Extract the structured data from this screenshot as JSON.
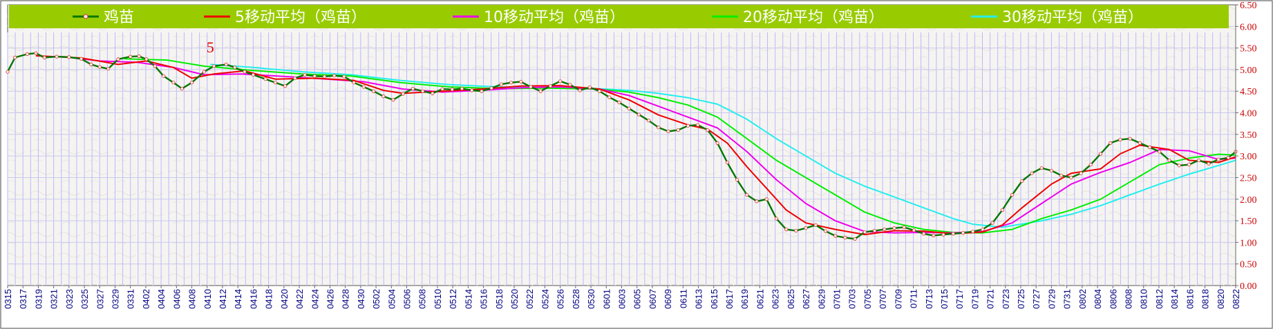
{
  "chart_data": {
    "type": "line",
    "title": "",
    "xlabel": "",
    "ylabel": "",
    "ylim": [
      0,
      6.5
    ],
    "yticks": [
      "0.00",
      "0.50",
      "1.00",
      "1.50",
      "2.00",
      "2.50",
      "3.00",
      "3.50",
      "4.00",
      "4.50",
      "5.00",
      "5.50",
      "6.00",
      "6.50"
    ],
    "x_tick_labels": [
      "0315",
      "0317",
      "0319",
      "0321",
      "0323",
      "0325",
      "0327",
      "0329",
      "0331",
      "0402",
      "0404",
      "0406",
      "0408",
      "0410",
      "0412",
      "0414",
      "0416",
      "0418",
      "0420",
      "0422",
      "0424",
      "0426",
      "0428",
      "0430",
      "0502",
      "0504",
      "0506",
      "0508",
      "0510",
      "0512",
      "0514",
      "0516",
      "0518",
      "0520",
      "0522",
      "0524",
      "0526",
      "0528",
      "0530",
      "0601",
      "0603",
      "0605",
      "0607",
      "0609",
      "0611",
      "0613",
      "0615",
      "0617",
      "0619",
      "0621",
      "0623",
      "0625",
      "0627",
      "0629",
      "0701",
      "0703",
      "0705",
      "0707",
      "0709",
      "0711",
      "0713",
      "0715",
      "0717",
      "0719",
      "0721",
      "0723",
      "0725",
      "0727",
      "0729",
      "0731",
      "0802",
      "0804",
      "0806",
      "0808",
      "0810",
      "0812",
      "0814",
      "0816",
      "0818",
      "0820",
      "0822"
    ],
    "annotation": {
      "text": "5",
      "at_x": 0.165,
      "y": 5.4
    },
    "legend": {
      "placement": "top",
      "background": "#99cc00",
      "text_color": "#ffffff"
    },
    "colors": {
      "plot_bg": "#f6f4f0",
      "grid_vertical": "#b8b8ff",
      "grid_horizontal": "#c8c8ee",
      "axis_text": "#cc0000",
      "xaxis_text": "#000080"
    },
    "series": [
      {
        "name": "鸡苗",
        "color": "#007700",
        "marker": true,
        "width": 2.4,
        "points": [
          [
            0,
            4.95
          ],
          [
            0.006,
            5.28
          ],
          [
            0.016,
            5.36
          ],
          [
            0.023,
            5.38
          ],
          [
            0.03,
            5.28
          ],
          [
            0.04,
            5.3
          ],
          [
            0.05,
            5.29
          ],
          [
            0.06,
            5.25
          ],
          [
            0.068,
            5.12
          ],
          [
            0.075,
            5.06
          ],
          [
            0.082,
            5.02
          ],
          [
            0.09,
            5.24
          ],
          [
            0.1,
            5.3
          ],
          [
            0.107,
            5.31
          ],
          [
            0.113,
            5.24
          ],
          [
            0.12,
            5.08
          ],
          [
            0.127,
            4.85
          ],
          [
            0.135,
            4.7
          ],
          [
            0.142,
            4.56
          ],
          [
            0.15,
            4.7
          ],
          [
            0.16,
            4.95
          ],
          [
            0.168,
            5.08
          ],
          [
            0.178,
            5.12
          ],
          [
            0.185,
            5.05
          ],
          [
            0.193,
            4.95
          ],
          [
            0.2,
            4.88
          ],
          [
            0.21,
            4.78
          ],
          [
            0.218,
            4.7
          ],
          [
            0.226,
            4.62
          ],
          [
            0.234,
            4.8
          ],
          [
            0.242,
            4.88
          ],
          [
            0.25,
            4.85
          ],
          [
            0.258,
            4.84
          ],
          [
            0.266,
            4.86
          ],
          [
            0.274,
            4.84
          ],
          [
            0.282,
            4.7
          ],
          [
            0.29,
            4.6
          ],
          [
            0.298,
            4.5
          ],
          [
            0.306,
            4.38
          ],
          [
            0.314,
            4.3
          ],
          [
            0.322,
            4.44
          ],
          [
            0.33,
            4.56
          ],
          [
            0.338,
            4.5
          ],
          [
            0.346,
            4.45
          ],
          [
            0.354,
            4.55
          ],
          [
            0.362,
            4.54
          ],
          [
            0.37,
            4.56
          ],
          [
            0.378,
            4.52
          ],
          [
            0.386,
            4.5
          ],
          [
            0.394,
            4.57
          ],
          [
            0.402,
            4.66
          ],
          [
            0.41,
            4.7
          ],
          [
            0.418,
            4.72
          ],
          [
            0.426,
            4.6
          ],
          [
            0.434,
            4.5
          ],
          [
            0.442,
            4.62
          ],
          [
            0.45,
            4.73
          ],
          [
            0.458,
            4.65
          ],
          [
            0.466,
            4.52
          ],
          [
            0.474,
            4.59
          ],
          [
            0.482,
            4.5
          ],
          [
            0.49,
            4.36
          ],
          [
            0.498,
            4.24
          ],
          [
            0.506,
            4.1
          ],
          [
            0.514,
            3.96
          ],
          [
            0.522,
            3.82
          ],
          [
            0.53,
            3.66
          ],
          [
            0.538,
            3.57
          ],
          [
            0.546,
            3.6
          ],
          [
            0.554,
            3.7
          ],
          [
            0.562,
            3.72
          ],
          [
            0.57,
            3.6
          ],
          [
            0.578,
            3.3
          ],
          [
            0.586,
            2.85
          ],
          [
            0.594,
            2.45
          ],
          [
            0.602,
            2.1
          ],
          [
            0.61,
            1.95
          ],
          [
            0.618,
            2.0
          ],
          [
            0.626,
            1.55
          ],
          [
            0.634,
            1.3
          ],
          [
            0.642,
            1.27
          ],
          [
            0.65,
            1.33
          ],
          [
            0.658,
            1.4
          ],
          [
            0.666,
            1.26
          ],
          [
            0.674,
            1.15
          ],
          [
            0.682,
            1.11
          ],
          [
            0.69,
            1.08
          ],
          [
            0.698,
            1.24
          ],
          [
            0.706,
            1.27
          ],
          [
            0.714,
            1.3
          ],
          [
            0.722,
            1.33
          ],
          [
            0.73,
            1.35
          ],
          [
            0.738,
            1.28
          ],
          [
            0.746,
            1.2
          ],
          [
            0.754,
            1.16
          ],
          [
            0.762,
            1.18
          ],
          [
            0.77,
            1.2
          ],
          [
            0.778,
            1.22
          ],
          [
            0.786,
            1.25
          ],
          [
            0.794,
            1.3
          ],
          [
            0.802,
            1.45
          ],
          [
            0.81,
            1.75
          ],
          [
            0.818,
            2.1
          ],
          [
            0.826,
            2.42
          ],
          [
            0.834,
            2.6
          ],
          [
            0.842,
            2.72
          ],
          [
            0.85,
            2.66
          ],
          [
            0.858,
            2.55
          ],
          [
            0.866,
            2.5
          ],
          [
            0.874,
            2.6
          ],
          [
            0.882,
            2.8
          ],
          [
            0.89,
            3.05
          ],
          [
            0.898,
            3.3
          ],
          [
            0.906,
            3.38
          ],
          [
            0.914,
            3.4
          ],
          [
            0.922,
            3.3
          ],
          [
            0.93,
            3.2
          ],
          [
            0.938,
            3.1
          ],
          [
            0.946,
            2.9
          ],
          [
            0.954,
            2.78
          ],
          [
            0.962,
            2.8
          ],
          [
            0.97,
            2.9
          ],
          [
            0.978,
            2.82
          ],
          [
            0.986,
            2.92
          ],
          [
            0.994,
            2.96
          ],
          [
            1.0,
            3.1
          ]
        ]
      },
      {
        "name": "5移动平均（鸡苗）",
        "color": "#ee0000",
        "marker": false,
        "width": 2,
        "points": [
          [
            0.023,
            5.32
          ],
          [
            0.06,
            5.27
          ],
          [
            0.09,
            5.12
          ],
          [
            0.113,
            5.2
          ],
          [
            0.135,
            5.05
          ],
          [
            0.15,
            4.8
          ],
          [
            0.168,
            4.9
          ],
          [
            0.193,
            4.97
          ],
          [
            0.218,
            4.78
          ],
          [
            0.25,
            4.8
          ],
          [
            0.282,
            4.75
          ],
          [
            0.306,
            4.52
          ],
          [
            0.322,
            4.45
          ],
          [
            0.354,
            4.5
          ],
          [
            0.386,
            4.55
          ],
          [
            0.418,
            4.62
          ],
          [
            0.45,
            4.63
          ],
          [
            0.482,
            4.55
          ],
          [
            0.506,
            4.3
          ],
          [
            0.53,
            3.95
          ],
          [
            0.554,
            3.72
          ],
          [
            0.57,
            3.62
          ],
          [
            0.586,
            3.3
          ],
          [
            0.602,
            2.75
          ],
          [
            0.618,
            2.25
          ],
          [
            0.634,
            1.75
          ],
          [
            0.65,
            1.45
          ],
          [
            0.674,
            1.3
          ],
          [
            0.698,
            1.18
          ],
          [
            0.722,
            1.27
          ],
          [
            0.746,
            1.26
          ],
          [
            0.77,
            1.2
          ],
          [
            0.794,
            1.24
          ],
          [
            0.81,
            1.4
          ],
          [
            0.826,
            1.8
          ],
          [
            0.85,
            2.35
          ],
          [
            0.866,
            2.6
          ],
          [
            0.89,
            2.7
          ],
          [
            0.906,
            3.05
          ],
          [
            0.922,
            3.25
          ],
          [
            0.946,
            3.15
          ],
          [
            0.962,
            2.9
          ],
          [
            0.986,
            2.85
          ],
          [
            1.0,
            2.98
          ]
        ]
      },
      {
        "name": "10移动平均（鸡苗）",
        "color": "#ee00ee",
        "marker": false,
        "width": 2,
        "points": [
          [
            0.045,
            5.3
          ],
          [
            0.075,
            5.2
          ],
          [
            0.105,
            5.17
          ],
          [
            0.135,
            5.05
          ],
          [
            0.16,
            4.88
          ],
          [
            0.19,
            4.9
          ],
          [
            0.22,
            4.85
          ],
          [
            0.26,
            4.78
          ],
          [
            0.29,
            4.72
          ],
          [
            0.322,
            4.55
          ],
          [
            0.354,
            4.48
          ],
          [
            0.386,
            4.52
          ],
          [
            0.418,
            4.58
          ],
          [
            0.45,
            4.6
          ],
          [
            0.482,
            4.55
          ],
          [
            0.506,
            4.4
          ],
          [
            0.53,
            4.15
          ],
          [
            0.554,
            3.9
          ],
          [
            0.578,
            3.65
          ],
          [
            0.602,
            3.1
          ],
          [
            0.626,
            2.45
          ],
          [
            0.65,
            1.9
          ],
          [
            0.674,
            1.5
          ],
          [
            0.698,
            1.25
          ],
          [
            0.722,
            1.22
          ],
          [
            0.746,
            1.23
          ],
          [
            0.77,
            1.22
          ],
          [
            0.794,
            1.25
          ],
          [
            0.818,
            1.45
          ],
          [
            0.842,
            1.9
          ],
          [
            0.866,
            2.35
          ],
          [
            0.89,
            2.62
          ],
          [
            0.914,
            2.85
          ],
          [
            0.938,
            3.15
          ],
          [
            0.962,
            3.12
          ],
          [
            0.986,
            2.92
          ],
          [
            1.0,
            2.95
          ]
        ]
      },
      {
        "name": "20移动平均（鸡苗）",
        "color": "#00ee00",
        "marker": false,
        "width": 2,
        "points": [
          [
            0.095,
            5.25
          ],
          [
            0.13,
            5.22
          ],
          [
            0.16,
            5.08
          ],
          [
            0.2,
            4.98
          ],
          [
            0.24,
            4.9
          ],
          [
            0.28,
            4.85
          ],
          [
            0.32,
            4.7
          ],
          [
            0.36,
            4.6
          ],
          [
            0.4,
            4.56
          ],
          [
            0.44,
            4.57
          ],
          [
            0.48,
            4.55
          ],
          [
            0.506,
            4.48
          ],
          [
            0.53,
            4.35
          ],
          [
            0.554,
            4.18
          ],
          [
            0.578,
            3.9
          ],
          [
            0.602,
            3.4
          ],
          [
            0.626,
            2.9
          ],
          [
            0.65,
            2.5
          ],
          [
            0.674,
            2.1
          ],
          [
            0.698,
            1.7
          ],
          [
            0.722,
            1.45
          ],
          [
            0.746,
            1.3
          ],
          [
            0.77,
            1.23
          ],
          [
            0.794,
            1.22
          ],
          [
            0.818,
            1.3
          ],
          [
            0.842,
            1.55
          ],
          [
            0.866,
            1.75
          ],
          [
            0.89,
            2.0
          ],
          [
            0.914,
            2.4
          ],
          [
            0.938,
            2.8
          ],
          [
            0.962,
            2.95
          ],
          [
            0.986,
            3.04
          ],
          [
            1.0,
            3.02
          ]
        ]
      },
      {
        "name": "30移动平均（鸡苗）",
        "color": "#22eeee",
        "marker": false,
        "width": 2,
        "points": [
          [
            0.165,
            5.12
          ],
          [
            0.2,
            5.05
          ],
          [
            0.24,
            4.95
          ],
          [
            0.28,
            4.88
          ],
          [
            0.32,
            4.75
          ],
          [
            0.36,
            4.65
          ],
          [
            0.4,
            4.6
          ],
          [
            0.44,
            4.58
          ],
          [
            0.48,
            4.56
          ],
          [
            0.506,
            4.52
          ],
          [
            0.53,
            4.45
          ],
          [
            0.554,
            4.35
          ],
          [
            0.578,
            4.2
          ],
          [
            0.602,
            3.85
          ],
          [
            0.626,
            3.4
          ],
          [
            0.65,
            3.0
          ],
          [
            0.674,
            2.6
          ],
          [
            0.698,
            2.3
          ],
          [
            0.722,
            2.05
          ],
          [
            0.746,
            1.8
          ],
          [
            0.77,
            1.55
          ],
          [
            0.786,
            1.42
          ],
          [
            0.81,
            1.35
          ],
          [
            0.842,
            1.5
          ],
          [
            0.866,
            1.65
          ],
          [
            0.89,
            1.85
          ],
          [
            0.914,
            2.1
          ],
          [
            0.938,
            2.35
          ],
          [
            0.962,
            2.58
          ],
          [
            0.986,
            2.78
          ],
          [
            1.0,
            2.9
          ]
        ]
      }
    ]
  }
}
